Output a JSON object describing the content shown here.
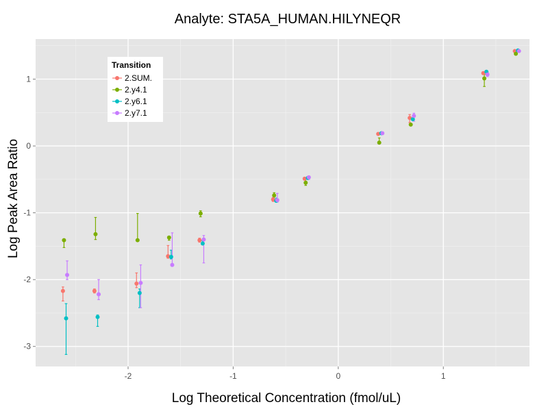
{
  "chart_data": {
    "type": "scatter",
    "title": "Analyte: STA5A_HUMAN.HILYNEQR",
    "xlabel": "Log Theoretical Concentration (fmol/uL)",
    "ylabel": "Log Peak Area Ratio",
    "xlim": [
      -2.88,
      1.82
    ],
    "ylim": [
      -3.3,
      1.6
    ],
    "x_ticks": [
      -2,
      -1,
      0,
      1
    ],
    "y_ticks": [
      -3,
      -2,
      -1,
      0,
      1
    ],
    "grid": true,
    "legend": {
      "title": "Transition",
      "position": "top-left"
    },
    "series": [
      {
        "name": "2.SUM.",
        "color": "#F8766D",
        "points": [
          {
            "x": -2.62,
            "y": -2.17,
            "lo": -2.32,
            "hi": -2.11
          },
          {
            "x": -2.32,
            "y": -2.17,
            "lo": -2.2,
            "hi": -2.14
          },
          {
            "x": -1.92,
            "y": -2.06,
            "lo": -2.12,
            "hi": -1.9
          },
          {
            "x": -1.62,
            "y": -1.65,
            "lo": -1.68,
            "hi": -1.49
          },
          {
            "x": -1.32,
            "y": -1.41,
            "lo": -1.44,
            "hi": -1.38
          },
          {
            "x": -0.62,
            "y": -0.8,
            "lo": -0.83,
            "hi": -0.77
          },
          {
            "x": -0.32,
            "y": -0.49,
            "lo": -0.51,
            "hi": -0.47
          },
          {
            "x": 0.38,
            "y": 0.18,
            "lo": 0.17,
            "hi": 0.19
          },
          {
            "x": 0.68,
            "y": 0.42,
            "lo": 0.35,
            "hi": 0.47
          },
          {
            "x": 1.38,
            "y": 1.09,
            "lo": 1.08,
            "hi": 1.1
          },
          {
            "x": 1.68,
            "y": 1.42,
            "lo": 1.41,
            "hi": 1.43
          }
        ]
      },
      {
        "name": "2.y4.1",
        "color": "#7CAE00",
        "points": [
          {
            "x": -2.61,
            "y": -1.41,
            "lo": -1.52,
            "hi": -1.4
          },
          {
            "x": -2.31,
            "y": -1.32,
            "lo": -1.4,
            "hi": -1.07
          },
          {
            "x": -1.91,
            "y": -1.41,
            "lo": -1.42,
            "hi": -1.01
          },
          {
            "x": -1.61,
            "y": -1.37,
            "lo": -1.41,
            "hi": -1.36
          },
          {
            "x": -1.31,
            "y": -1.01,
            "lo": -1.06,
            "hi": -0.97
          },
          {
            "x": -0.61,
            "y": -0.74,
            "lo": -0.8,
            "hi": -0.7
          },
          {
            "x": -0.31,
            "y": -0.55,
            "lo": -0.59,
            "hi": -0.49
          },
          {
            "x": 0.39,
            "y": 0.05,
            "lo": 0.04,
            "hi": 0.12
          },
          {
            "x": 0.69,
            "y": 0.32,
            "lo": 0.31,
            "hi": 0.33
          },
          {
            "x": 1.39,
            "y": 1.01,
            "lo": 0.89,
            "hi": 1.07
          },
          {
            "x": 1.69,
            "y": 1.38,
            "lo": 1.36,
            "hi": 1.4
          }
        ]
      },
      {
        "name": "2.y6.1",
        "color": "#00BFC4",
        "points": [
          {
            "x": -2.59,
            "y": -2.58,
            "lo": -3.12,
            "hi": -2.36
          },
          {
            "x": -2.29,
            "y": -2.56,
            "lo": -2.7,
            "hi": -2.53
          },
          {
            "x": -1.89,
            "y": -2.2,
            "lo": -2.42,
            "hi": -2.14
          },
          {
            "x": -1.59,
            "y": -1.66,
            "lo": -1.69,
            "hi": -1.56
          },
          {
            "x": -1.29,
            "y": -1.46,
            "lo": -1.48,
            "hi": -1.42
          },
          {
            "x": -0.59,
            "y": -0.82,
            "lo": -0.84,
            "hi": -0.78
          },
          {
            "x": -0.29,
            "y": -0.48,
            "lo": -0.5,
            "hi": -0.46
          },
          {
            "x": 0.41,
            "y": 0.19,
            "lo": 0.18,
            "hi": 0.2
          },
          {
            "x": 0.71,
            "y": 0.4,
            "lo": 0.38,
            "hi": 0.42
          },
          {
            "x": 1.41,
            "y": 1.11,
            "lo": 1.1,
            "hi": 1.12
          },
          {
            "x": 1.71,
            "y": 1.43,
            "lo": 1.42,
            "hi": 1.44
          }
        ]
      },
      {
        "name": "2.y7.1",
        "color": "#C77CFF",
        "points": [
          {
            "x": -2.58,
            "y": -1.93,
            "lo": -2.0,
            "hi": -1.72
          },
          {
            "x": -2.28,
            "y": -2.22,
            "lo": -2.3,
            "hi": -2.0
          },
          {
            "x": -1.88,
            "y": -2.05,
            "lo": -2.42,
            "hi": -1.78
          },
          {
            "x": -1.58,
            "y": -1.78,
            "lo": -1.8,
            "hi": -1.3
          },
          {
            "x": -1.28,
            "y": -1.4,
            "lo": -1.75,
            "hi": -1.34
          },
          {
            "x": -0.58,
            "y": -0.81,
            "lo": -0.84,
            "hi": -0.71
          },
          {
            "x": -0.28,
            "y": -0.47,
            "lo": -0.5,
            "hi": -0.45
          },
          {
            "x": 0.42,
            "y": 0.19,
            "lo": 0.18,
            "hi": 0.2
          },
          {
            "x": 0.72,
            "y": 0.45,
            "lo": 0.37,
            "hi": 0.49
          },
          {
            "x": 1.42,
            "y": 1.07,
            "lo": 1.04,
            "hi": 1.1
          },
          {
            "x": 1.72,
            "y": 1.42,
            "lo": 1.41,
            "hi": 1.43
          }
        ]
      }
    ]
  }
}
